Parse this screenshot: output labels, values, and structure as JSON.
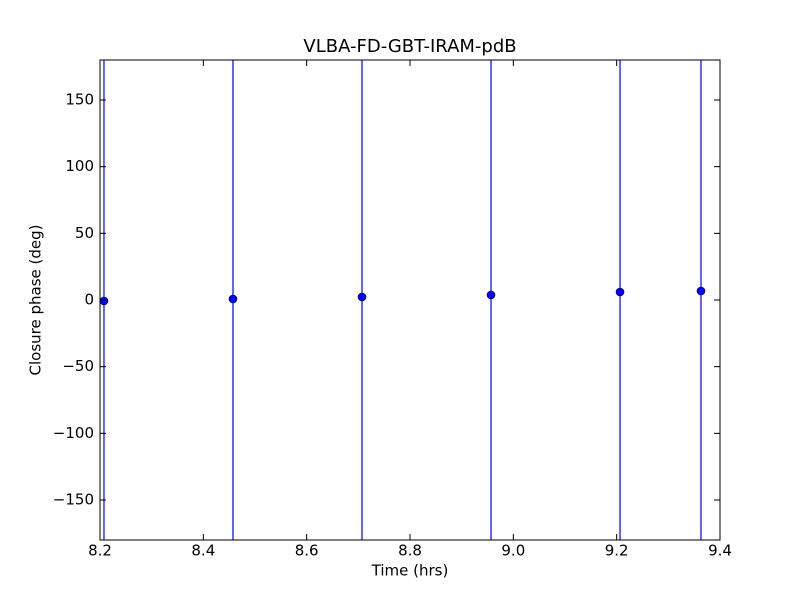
{
  "chart_data": {
    "type": "errorbar",
    "title": "VLBA-FD-GBT-IRAM-pdB",
    "xlabel": "Time (hrs)",
    "ylabel": "Closure phase (deg)",
    "x": [
      8.2077,
      8.4574,
      8.7071,
      8.9568,
      9.2065,
      9.3632
    ],
    "values": [
      -0.75,
      0.75,
      2.25,
      3.75,
      6,
      6.75
    ],
    "errors": [
      200,
      200,
      200,
      200,
      200,
      200
    ],
    "color": "#0000ff",
    "xlim": [
      8.2,
      9.4
    ],
    "xticks": [
      8.2,
      8.4,
      8.6,
      8.8,
      {
        "value": 9,
        "label": "9.0"
      },
      9.2,
      9.4
    ],
    "ylim": [
      -180,
      180
    ],
    "yticks": [
      {
        "value": -150,
        "label": "−150"
      },
      {
        "value": -100,
        "label": "−100"
      },
      {
        "value": -50,
        "label": "−50"
      },
      0,
      50,
      100,
      150
    ]
  }
}
